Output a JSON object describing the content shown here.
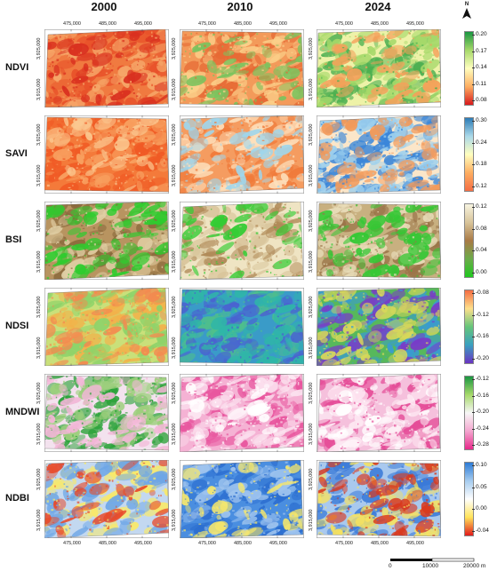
{
  "columns": [
    "2000",
    "2010",
    "2024"
  ],
  "x_ticks": [
    "475,000",
    "485,000",
    "495,000"
  ],
  "y_ticks": [
    "3,925,000",
    "3,915,000"
  ],
  "north_label": "N",
  "scale_bar": {
    "labels": [
      "0",
      "10000",
      "20000 m"
    ]
  },
  "rows": [
    {
      "index": "NDVI",
      "colorbar_ticks": [
        "0.20",
        "0.17",
        "0.14",
        "0.11",
        "0.08"
      ],
      "colorbar_colors": [
        "#1a9641",
        "#a6d96a",
        "#ffffbf",
        "#fdae61",
        "#d7191c"
      ],
      "years": [
        {
          "year": "2000",
          "base": "#f07a40",
          "mix": [
            [
              "#e8522a",
              0.5
            ],
            [
              "#f6a86a",
              0.35
            ],
            [
              "#d9301f",
              0.25
            ]
          ]
        },
        {
          "year": "2010",
          "base": "#f39a5a",
          "mix": [
            [
              "#e66a35",
              0.35
            ],
            [
              "#fbd08a",
              0.4
            ],
            [
              "#7cc35e",
              0.25
            ]
          ]
        },
        {
          "year": "2024",
          "base": "#eef2a8",
          "mix": [
            [
              "#4caf50",
              0.5
            ],
            [
              "#a6d96a",
              0.45
            ],
            [
              "#f5a05a",
              0.3
            ]
          ]
        }
      ]
    },
    {
      "index": "SAVI",
      "colorbar_ticks": [
        "0.30",
        "0.24",
        "0.18",
        "0.12"
      ],
      "colorbar_colors": [
        "#2c7bb6",
        "#abd9e9",
        "#ffffbf",
        "#fdae61",
        "#f46d43"
      ],
      "years": [
        {
          "year": "2000",
          "base": "#f47a3a",
          "mix": [
            [
              "#f05a25",
              0.5
            ],
            [
              "#f8a060",
              0.35
            ],
            [
              "#fbc890",
              0.2
            ]
          ]
        },
        {
          "year": "2010",
          "base": "#f59c60",
          "mix": [
            [
              "#f07a3a",
              0.35
            ],
            [
              "#fde0bc",
              0.35
            ],
            [
              "#9fd6ec",
              0.3
            ]
          ]
        },
        {
          "year": "2024",
          "base": "#fbe6c9",
          "mix": [
            [
              "#3a86d9",
              0.55
            ],
            [
              "#9dd0ee",
              0.45
            ],
            [
              "#f29a5a",
              0.3
            ]
          ]
        }
      ]
    },
    {
      "index": "BSI",
      "colorbar_ticks": [
        "0.12",
        "0.08",
        "0.04",
        "0.00"
      ],
      "colorbar_colors": [
        "#f7f4e0",
        "#d8c49a",
        "#a97a45",
        "#6cab4a",
        "#1fc81f"
      ],
      "years": [
        {
          "year": "2000",
          "base": "#b89460",
          "mix": [
            [
              "#8a6a3c",
              0.45
            ],
            [
              "#e0cfa4",
              0.35
            ],
            [
              "#2ecc2e",
              0.35
            ]
          ]
        },
        {
          "year": "2010",
          "base": "#efe4c3",
          "mix": [
            [
              "#d8c49a",
              0.4
            ],
            [
              "#b08a58",
              0.3
            ],
            [
              "#33cc33",
              0.2
            ]
          ]
        },
        {
          "year": "2024",
          "base": "#c8b080",
          "mix": [
            [
              "#9a7448",
              0.4
            ],
            [
              "#e8dcb8",
              0.35
            ],
            [
              "#35c835",
              0.4
            ]
          ]
        }
      ]
    },
    {
      "index": "NDSI",
      "colorbar_ticks": [
        "-0.08",
        "-0.12",
        "-0.16",
        "-0.20"
      ],
      "colorbar_colors": [
        "#f46d43",
        "#fee08b",
        "#66c57a",
        "#3aa0c0",
        "#6a33c2"
      ],
      "years": [
        {
          "year": "2000",
          "base": "#c9e07a",
          "mix": [
            [
              "#f2b24a",
              0.45
            ],
            [
              "#8ed36a",
              0.4
            ],
            [
              "#f38a50",
              0.25
            ]
          ]
        },
        {
          "year": "2010",
          "base": "#3a9bc8",
          "mix": [
            [
              "#4fc08a",
              0.4
            ],
            [
              "#4a63d0",
              0.35
            ],
            [
              "#2fb6a8",
              0.35
            ]
          ]
        },
        {
          "year": "2024",
          "base": "#57b85c",
          "mix": [
            [
              "#3a9bd0",
              0.45
            ],
            [
              "#7a3ac8",
              0.35
            ],
            [
              "#d7d85a",
              0.35
            ]
          ]
        }
      ]
    },
    {
      "index": "MNDWI",
      "colorbar_ticks": [
        "-0.12",
        "-0.16",
        "-0.20",
        "-0.24",
        "-0.28"
      ],
      "colorbar_colors": [
        "#1a9641",
        "#a6d96a",
        "#f7f7f7",
        "#f4a6cf",
        "#e7298a"
      ],
      "years": [
        {
          "year": "2000",
          "base": "#f3e2ee",
          "mix": [
            [
              "#2ca33a",
              0.5
            ],
            [
              "#9ccf7c",
              0.35
            ],
            [
              "#f2b6d6",
              0.3
            ]
          ]
        },
        {
          "year": "2010",
          "base": "#f5b2d4",
          "mix": [
            [
              "#e8559e",
              0.55
            ],
            [
              "#fbe0ee",
              0.4
            ],
            [
              "#ffffff",
              0.2
            ]
          ]
        },
        {
          "year": "2024",
          "base": "#f5c0dc",
          "mix": [
            [
              "#e54d98",
              0.5
            ],
            [
              "#fde6f1",
              0.45
            ],
            [
              "#ffffff",
              0.2
            ]
          ]
        }
      ]
    },
    {
      "index": "NDBI",
      "colorbar_ticks": [
        "0.10",
        "0.05",
        "0.00",
        "-0.04"
      ],
      "colorbar_colors": [
        "#2c7bd6",
        "#a6ccef",
        "#ffffff",
        "#ffe45a",
        "#e21a1a"
      ],
      "years": [
        {
          "year": "2000",
          "base": "#c3d8f0",
          "mix": [
            [
              "#f8e96a",
              0.45
            ],
            [
              "#6ea6e6",
              0.35
            ],
            [
              "#e84a2a",
              0.2
            ]
          ]
        },
        {
          "year": "2010",
          "base": "#4a8ee0",
          "mix": [
            [
              "#2d6fd0",
              0.45
            ],
            [
              "#9fc4ee",
              0.35
            ],
            [
              "#f8e86a",
              0.2
            ]
          ]
        },
        {
          "year": "2024",
          "base": "#a9c9ee",
          "mix": [
            [
              "#3a7ad8",
              0.4
            ],
            [
              "#f7e25e",
              0.35
            ],
            [
              "#d9381d",
              0.3
            ]
          ]
        }
      ]
    }
  ]
}
